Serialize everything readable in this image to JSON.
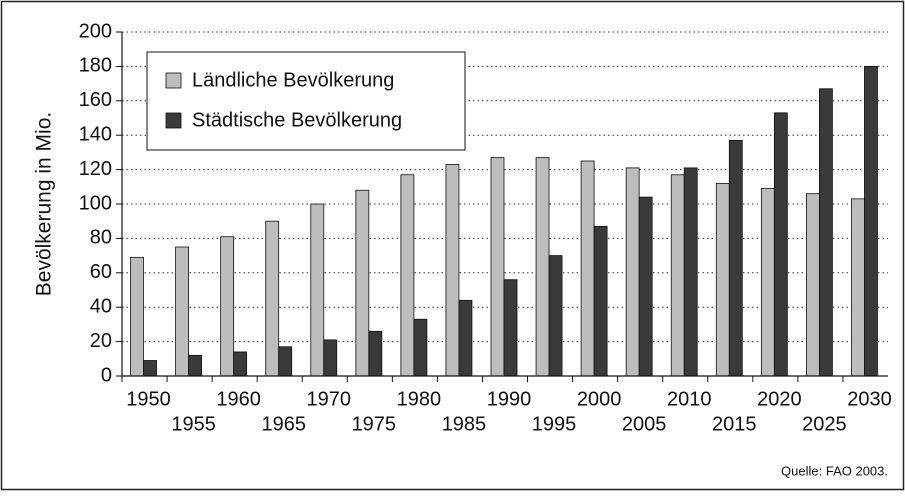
{
  "chart_data": {
    "type": "bar",
    "y_label": "Bevölkerung in Mio.",
    "source": "Quelle: FAO 2003.",
    "categories": [
      "1950",
      "1955",
      "1960",
      "1965",
      "1970",
      "1975",
      "1980",
      "1985",
      "1990",
      "1995",
      "2000",
      "2005",
      "2010",
      "2015",
      "2020",
      "2025",
      "2030"
    ],
    "series": [
      {
        "name": "Ländliche Bevölkerung",
        "color": "#bdbdbd",
        "values": [
          69,
          75,
          81,
          90,
          100,
          108,
          117,
          123,
          127,
          127,
          125,
          121,
          117,
          112,
          109,
          106,
          103
        ]
      },
      {
        "name": "Städtische Bevölkerung",
        "color": "#3a3a3a",
        "values": [
          9,
          12,
          14,
          17,
          21,
          26,
          33,
          44,
          56,
          70,
          87,
          104,
          121,
          137,
          153,
          167,
          180
        ]
      }
    ],
    "ylim": [
      0,
      200
    ],
    "yticks": [
      0,
      20,
      40,
      60,
      80,
      100,
      120,
      140,
      160,
      180,
      200
    ],
    "grid": true
  }
}
